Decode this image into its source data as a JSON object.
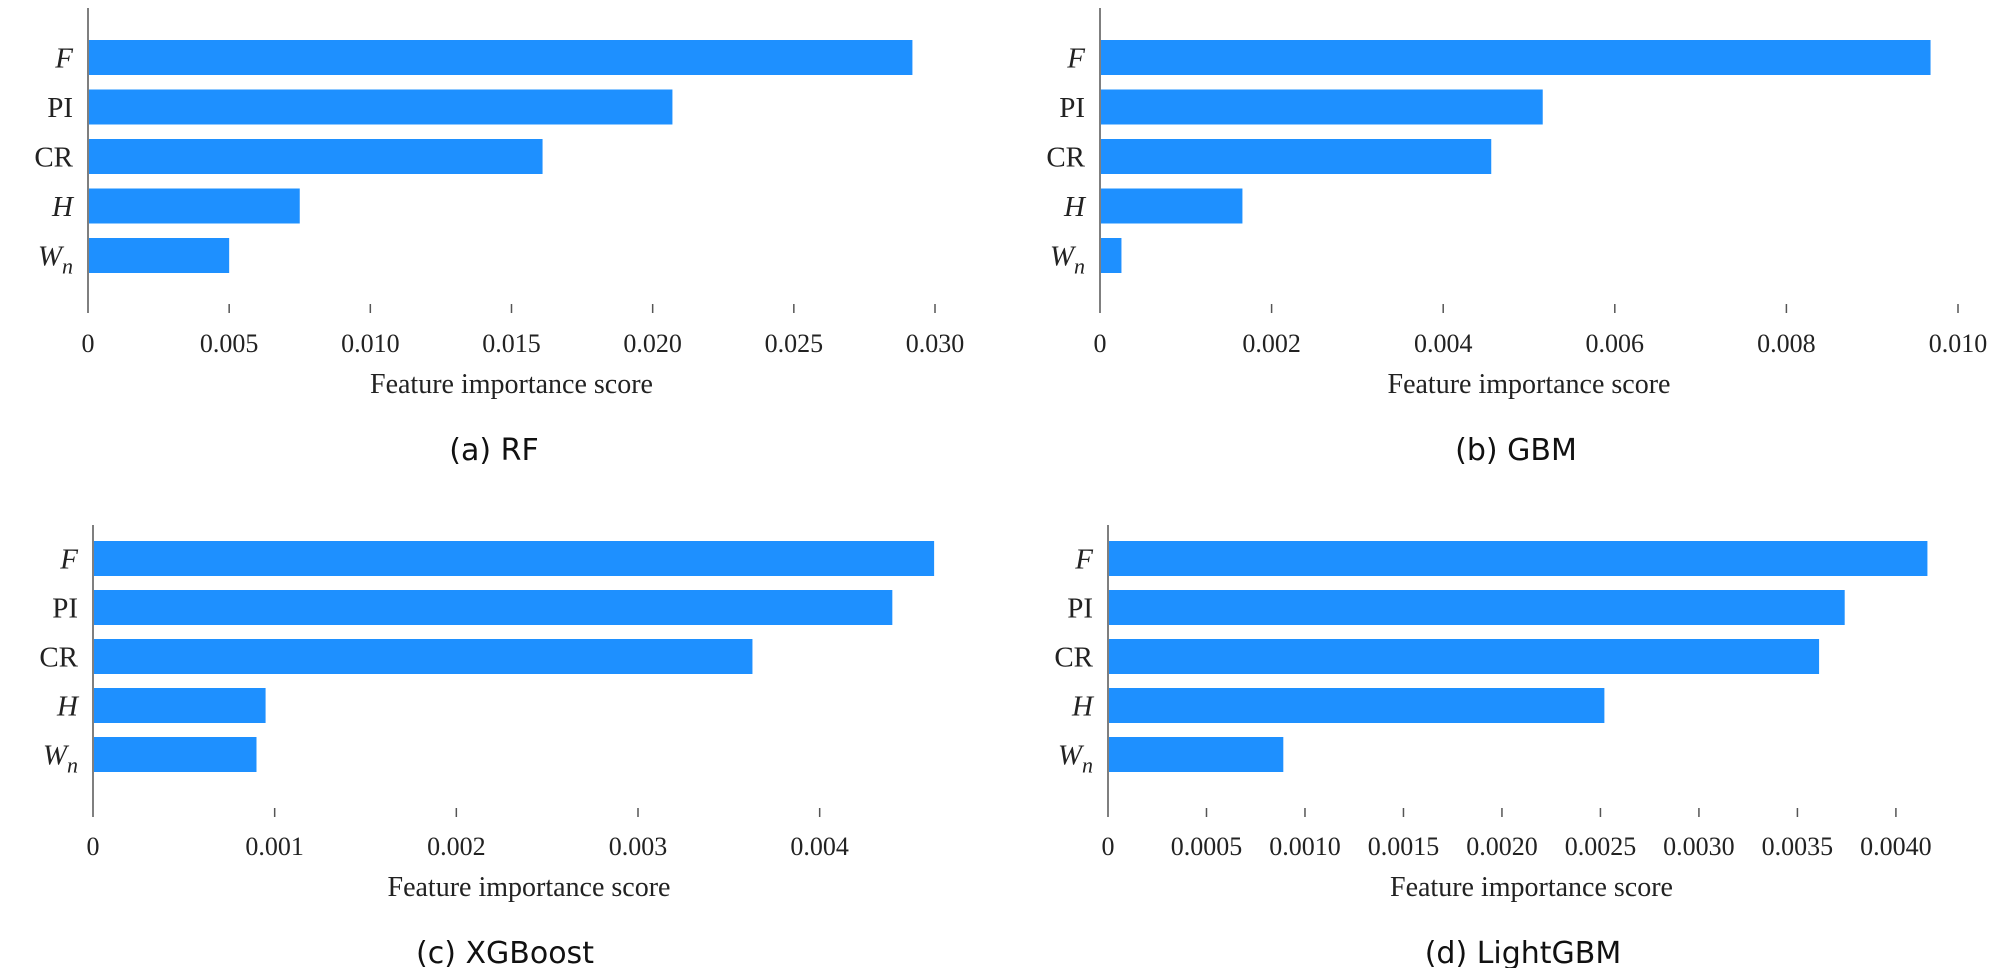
{
  "colors": {
    "bar": "#1E90FF",
    "axis": "#555555",
    "text": "#222222"
  },
  "chart_data": [
    {
      "type": "bar",
      "orientation": "horizontal",
      "caption": "(a) RF",
      "xlabel": "Feature importance score",
      "categories": [
        "F",
        "PI",
        "CR",
        "H",
        "W_n"
      ],
      "category_labels": [
        {
          "base": "F",
          "sub": "",
          "italic": true
        },
        {
          "base": "PI",
          "sub": "",
          "italic": false
        },
        {
          "base": "CR",
          "sub": "",
          "italic": false
        },
        {
          "base": "H",
          "sub": "",
          "italic": true
        },
        {
          "base": "W",
          "sub": "n",
          "italic": true
        }
      ],
      "values": [
        0.0292,
        0.0207,
        0.0161,
        0.0075,
        0.005
      ],
      "xlim": [
        0,
        0.03
      ],
      "ticks": [
        0,
        0.005,
        0.01,
        0.015,
        0.02,
        0.025,
        0.03
      ],
      "tick_labels": [
        "0",
        "0.005",
        "0.010",
        "0.015",
        "0.020",
        "0.025",
        "0.030"
      ],
      "grid": false,
      "legend": "none"
    },
    {
      "type": "bar",
      "orientation": "horizontal",
      "caption": "(b) GBM",
      "xlabel": "Feature importance score",
      "categories": [
        "F",
        "PI",
        "CR",
        "H",
        "W_n"
      ],
      "category_labels": [
        {
          "base": "F",
          "sub": "",
          "italic": true
        },
        {
          "base": "PI",
          "sub": "",
          "italic": false
        },
        {
          "base": "CR",
          "sub": "",
          "italic": false
        },
        {
          "base": "H",
          "sub": "",
          "italic": true
        },
        {
          "base": "W",
          "sub": "n",
          "italic": true
        }
      ],
      "values": [
        0.00968,
        0.00516,
        0.00456,
        0.00166,
        0.00025
      ],
      "xlim": [
        0,
        0.01
      ],
      "ticks": [
        0,
        0.002,
        0.004,
        0.006,
        0.008,
        0.01
      ],
      "tick_labels": [
        "0",
        "0.002",
        "0.004",
        "0.006",
        "0.008",
        "0.010"
      ],
      "grid": false,
      "legend": "none"
    },
    {
      "type": "bar",
      "orientation": "horizontal",
      "caption": "(c) XGBoost",
      "xlabel": "Feature importance score",
      "categories": [
        "F",
        "PI",
        "CR",
        "H",
        "W_n"
      ],
      "category_labels": [
        {
          "base": "F",
          "sub": "",
          "italic": true
        },
        {
          "base": "PI",
          "sub": "",
          "italic": false
        },
        {
          "base": "CR",
          "sub": "",
          "italic": false
        },
        {
          "base": "H",
          "sub": "",
          "italic": true
        },
        {
          "base": "W",
          "sub": "n",
          "italic": true
        }
      ],
      "values": [
        0.00463,
        0.0044,
        0.00363,
        0.00095,
        0.0009
      ],
      "xlim": [
        0,
        0.0048
      ],
      "ticks": [
        0,
        0.001,
        0.002,
        0.003,
        0.004
      ],
      "tick_labels": [
        "0",
        "0.001",
        "0.002",
        "0.003",
        "0.004"
      ],
      "grid": false,
      "legend": "none"
    },
    {
      "type": "bar",
      "orientation": "horizontal",
      "caption": "(d) LightGBM",
      "xlabel": "Feature importance score",
      "categories": [
        "F",
        "PI",
        "CR",
        "H",
        "W_n"
      ],
      "category_labels": [
        {
          "base": "F",
          "sub": "",
          "italic": true
        },
        {
          "base": "PI",
          "sub": "",
          "italic": false
        },
        {
          "base": "CR",
          "sub": "",
          "italic": false
        },
        {
          "base": "H",
          "sub": "",
          "italic": true
        },
        {
          "base": "W",
          "sub": "n",
          "italic": true
        }
      ],
      "values": [
        0.00416,
        0.00374,
        0.00361,
        0.00252,
        0.00089
      ],
      "xlim": [
        0,
        0.0043
      ],
      "ticks": [
        0,
        0.0005,
        0.001,
        0.0015,
        0.002,
        0.0025,
        0.003,
        0.0035,
        0.004
      ],
      "tick_labels": [
        "0",
        "0.0005",
        "0.0010",
        "0.0015",
        "0.0020",
        "0.0025",
        "0.0030",
        "0.0035",
        "0.0040"
      ],
      "grid": false,
      "legend": "none"
    }
  ]
}
